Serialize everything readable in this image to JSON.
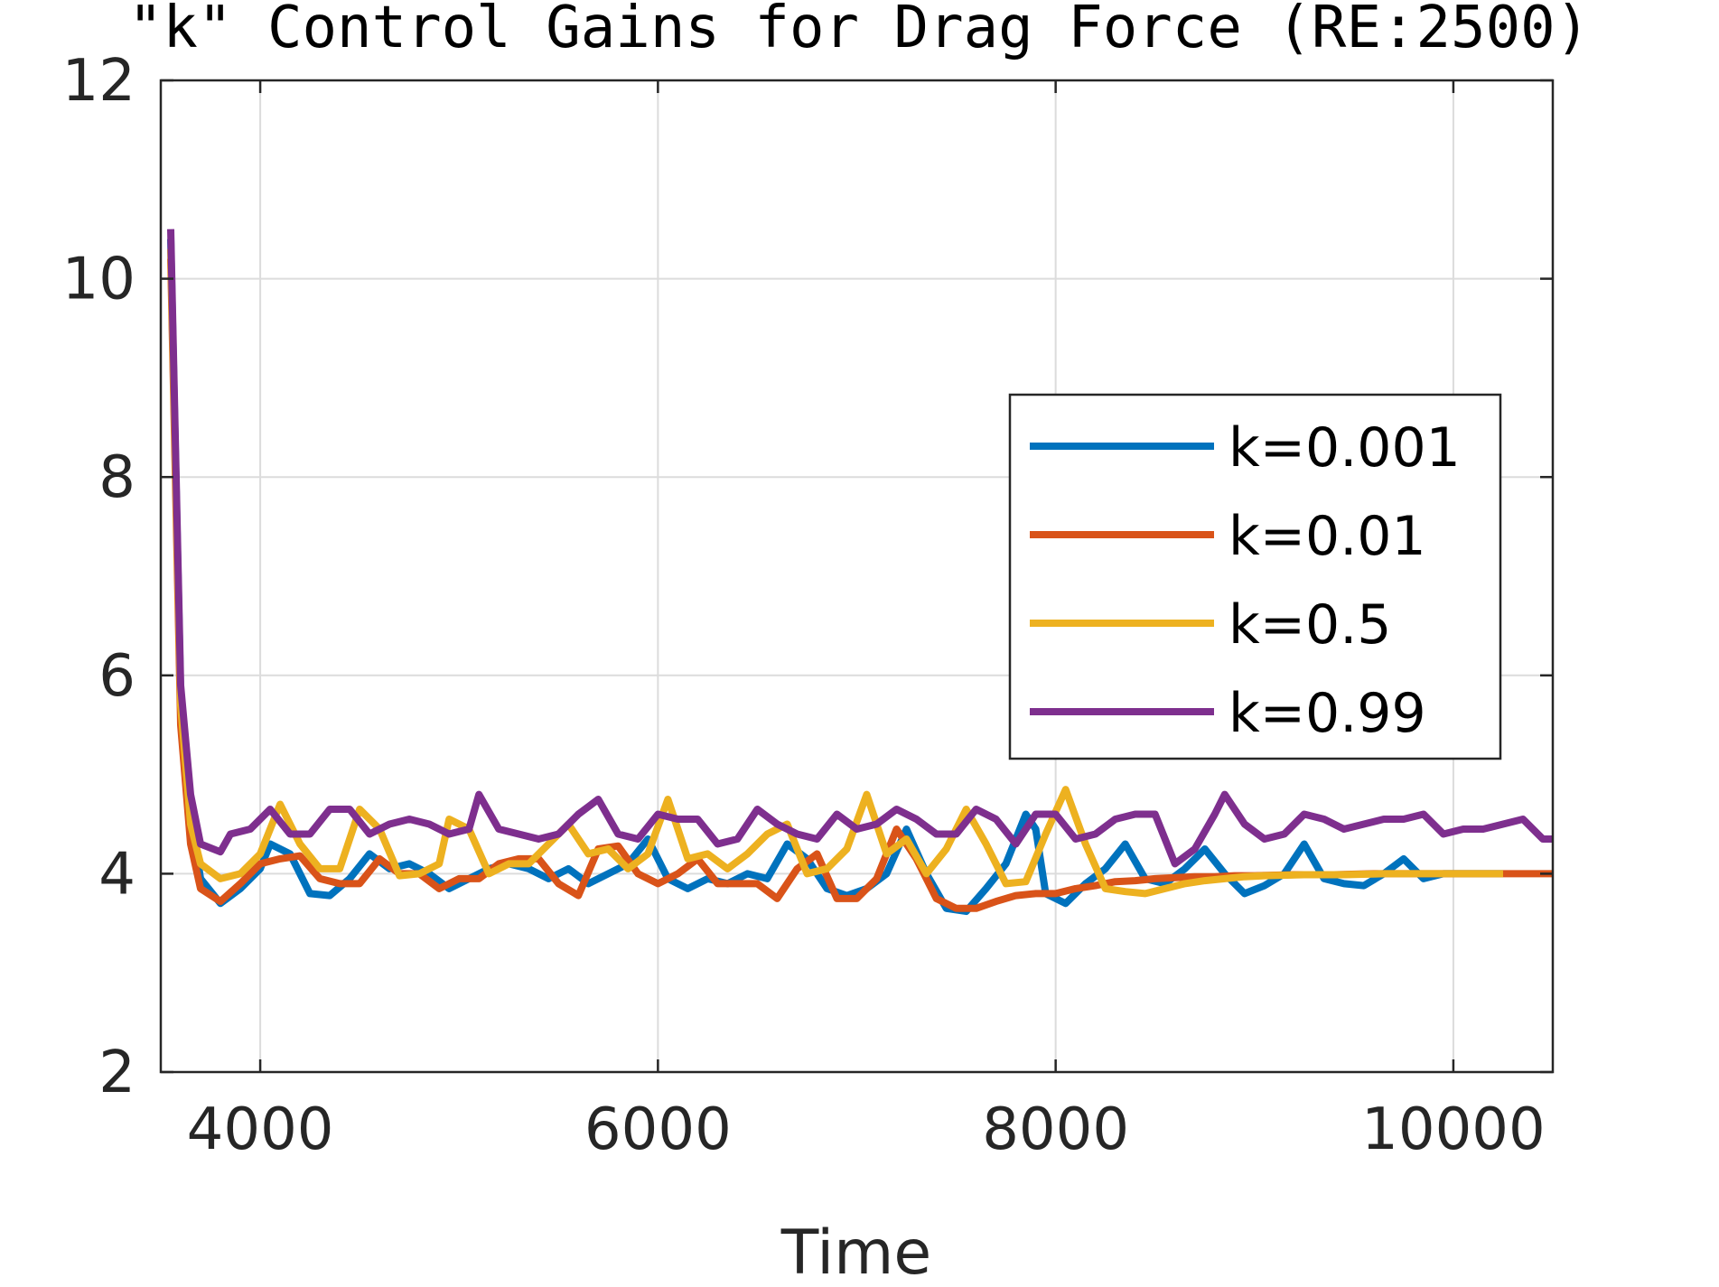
{
  "chart_data": {
    "type": "line",
    "title": "\"k\" Control Gains for Drag Force (RE:2500)",
    "xlabel": "Time",
    "ylabel": "",
    "xlim": [
      3500,
      10500
    ],
    "ylim": [
      2,
      12
    ],
    "xticks": [
      4000,
      6000,
      8000,
      10000
    ],
    "yticks": [
      2,
      4,
      6,
      8,
      10,
      12
    ],
    "grid": true,
    "legend_position": "right",
    "series": [
      {
        "name": "k=0.001",
        "color": "#0072BD",
        "points": [
          [
            3550,
            10.4
          ],
          [
            3600,
            5.8
          ],
          [
            3650,
            4.6
          ],
          [
            3700,
            3.95
          ],
          [
            3800,
            3.7
          ],
          [
            3900,
            3.85
          ],
          [
            4000,
            4.05
          ],
          [
            4050,
            4.3
          ],
          [
            4150,
            4.2
          ],
          [
            4250,
            3.8
          ],
          [
            4350,
            3.78
          ],
          [
            4450,
            3.95
          ],
          [
            4550,
            4.2
          ],
          [
            4650,
            4.05
          ],
          [
            4750,
            4.1
          ],
          [
            4850,
            4.0
          ],
          [
            4950,
            3.85
          ],
          [
            5050,
            3.95
          ],
          [
            5150,
            4.05
          ],
          [
            5250,
            4.1
          ],
          [
            5350,
            4.05
          ],
          [
            5450,
            3.95
          ],
          [
            5550,
            4.05
          ],
          [
            5650,
            3.9
          ],
          [
            5750,
            4.0
          ],
          [
            5850,
            4.1
          ],
          [
            5950,
            4.35
          ],
          [
            6050,
            3.95
          ],
          [
            6150,
            3.85
          ],
          [
            6250,
            3.95
          ],
          [
            6350,
            3.9
          ],
          [
            6450,
            4.0
          ],
          [
            6550,
            3.95
          ],
          [
            6650,
            4.3
          ],
          [
            6750,
            4.15
          ],
          [
            6850,
            3.85
          ],
          [
            6950,
            3.78
          ],
          [
            7050,
            3.85
          ],
          [
            7150,
            4.0
          ],
          [
            7250,
            4.45
          ],
          [
            7350,
            4.0
          ],
          [
            7450,
            3.65
          ],
          [
            7550,
            3.62
          ],
          [
            7650,
            3.85
          ],
          [
            7750,
            4.1
          ],
          [
            7850,
            4.6
          ],
          [
            7900,
            4.45
          ],
          [
            7950,
            3.8
          ],
          [
            8050,
            3.7
          ],
          [
            8150,
            3.9
          ],
          [
            8250,
            4.05
          ],
          [
            8350,
            4.3
          ],
          [
            8450,
            3.95
          ],
          [
            8550,
            3.9
          ],
          [
            8650,
            4.05
          ],
          [
            8750,
            4.25
          ],
          [
            8850,
            4.0
          ],
          [
            8950,
            3.8
          ],
          [
            9050,
            3.88
          ],
          [
            9150,
            4.0
          ],
          [
            9250,
            4.3
          ],
          [
            9350,
            3.95
          ],
          [
            9450,
            3.9
          ],
          [
            9550,
            3.88
          ],
          [
            9650,
            4.0
          ],
          [
            9750,
            4.15
          ],
          [
            9850,
            3.95
          ],
          [
            9950,
            4.0
          ],
          [
            10050,
            4.0
          ],
          [
            10150,
            4.0
          ],
          [
            10250,
            4.0
          ]
        ]
      },
      {
        "name": "k=0.01",
        "color": "#D95319",
        "points": [
          [
            3550,
            10.2
          ],
          [
            3600,
            5.5
          ],
          [
            3650,
            4.3
          ],
          [
            3700,
            3.85
          ],
          [
            3800,
            3.72
          ],
          [
            3900,
            3.9
          ],
          [
            4000,
            4.1
          ],
          [
            4100,
            4.15
          ],
          [
            4200,
            4.18
          ],
          [
            4300,
            3.95
          ],
          [
            4400,
            3.9
          ],
          [
            4500,
            3.9
          ],
          [
            4600,
            4.15
          ],
          [
            4700,
            4.0
          ],
          [
            4800,
            4.0
          ],
          [
            4900,
            3.85
          ],
          [
            5000,
            3.95
          ],
          [
            5100,
            3.95
          ],
          [
            5200,
            4.1
          ],
          [
            5300,
            4.15
          ],
          [
            5400,
            4.15
          ],
          [
            5500,
            3.9
          ],
          [
            5600,
            3.78
          ],
          [
            5700,
            4.25
          ],
          [
            5800,
            4.28
          ],
          [
            5900,
            4.0
          ],
          [
            6000,
            3.9
          ],
          [
            6100,
            4.0
          ],
          [
            6200,
            4.15
          ],
          [
            6300,
            3.9
          ],
          [
            6400,
            3.9
          ],
          [
            6500,
            3.9
          ],
          [
            6600,
            3.75
          ],
          [
            6700,
            4.05
          ],
          [
            6800,
            4.2
          ],
          [
            6900,
            3.75
          ],
          [
            7000,
            3.75
          ],
          [
            7100,
            3.95
          ],
          [
            7200,
            4.45
          ],
          [
            7300,
            4.15
          ],
          [
            7400,
            3.75
          ],
          [
            7500,
            3.65
          ],
          [
            7600,
            3.65
          ],
          [
            7700,
            3.72
          ],
          [
            7800,
            3.78
          ],
          [
            7900,
            3.8
          ],
          [
            8000,
            3.8
          ],
          [
            8100,
            3.85
          ],
          [
            8200,
            3.88
          ],
          [
            8300,
            3.92
          ],
          [
            8400,
            3.93
          ],
          [
            8500,
            3.95
          ],
          [
            8600,
            3.96
          ],
          [
            8700,
            3.97
          ],
          [
            8800,
            3.97
          ],
          [
            8900,
            3.98
          ],
          [
            9000,
            3.98
          ],
          [
            9200,
            3.99
          ],
          [
            9400,
            3.99
          ],
          [
            9600,
            4.0
          ],
          [
            9800,
            4.0
          ],
          [
            10000,
            4.0
          ],
          [
            10200,
            4.0
          ],
          [
            10500,
            4.0
          ]
        ]
      },
      {
        "name": "k=0.5",
        "color": "#EDB120",
        "points": [
          [
            3550,
            10.3
          ],
          [
            3600,
            5.7
          ],
          [
            3650,
            4.5
          ],
          [
            3700,
            4.1
          ],
          [
            3800,
            3.95
          ],
          [
            3900,
            4.0
          ],
          [
            4000,
            4.2
          ],
          [
            4100,
            4.7
          ],
          [
            4200,
            4.3
          ],
          [
            4300,
            4.05
          ],
          [
            4400,
            4.05
          ],
          [
            4500,
            4.65
          ],
          [
            4600,
            4.45
          ],
          [
            4700,
            3.98
          ],
          [
            4800,
            4.0
          ],
          [
            4900,
            4.1
          ],
          [
            4950,
            4.55
          ],
          [
            5050,
            4.45
          ],
          [
            5150,
            4.0
          ],
          [
            5250,
            4.1
          ],
          [
            5350,
            4.1
          ],
          [
            5450,
            4.3
          ],
          [
            5550,
            4.5
          ],
          [
            5650,
            4.2
          ],
          [
            5750,
            4.25
          ],
          [
            5850,
            4.05
          ],
          [
            5950,
            4.2
          ],
          [
            6050,
            4.75
          ],
          [
            6150,
            4.15
          ],
          [
            6250,
            4.2
          ],
          [
            6350,
            4.05
          ],
          [
            6450,
            4.2
          ],
          [
            6550,
            4.4
          ],
          [
            6650,
            4.5
          ],
          [
            6750,
            4.0
          ],
          [
            6850,
            4.05
          ],
          [
            6950,
            4.25
          ],
          [
            7050,
            4.8
          ],
          [
            7150,
            4.2
          ],
          [
            7250,
            4.35
          ],
          [
            7350,
            4.0
          ],
          [
            7450,
            4.25
          ],
          [
            7550,
            4.65
          ],
          [
            7650,
            4.3
          ],
          [
            7750,
            3.9
          ],
          [
            7850,
            3.92
          ],
          [
            7950,
            4.4
          ],
          [
            8050,
            4.85
          ],
          [
            8150,
            4.3
          ],
          [
            8250,
            3.85
          ],
          [
            8350,
            3.82
          ],
          [
            8450,
            3.8
          ],
          [
            8550,
            3.85
          ],
          [
            8650,
            3.9
          ],
          [
            8750,
            3.93
          ],
          [
            8850,
            3.95
          ],
          [
            8950,
            3.97
          ],
          [
            9050,
            3.98
          ],
          [
            9250,
            3.99
          ],
          [
            9450,
            3.99
          ],
          [
            9650,
            4.0
          ],
          [
            9850,
            4.0
          ],
          [
            10050,
            4.0
          ],
          [
            10250,
            4.0
          ]
        ]
      },
      {
        "name": "k=0.99",
        "color": "#7E2F8E",
        "points": [
          [
            3550,
            10.5
          ],
          [
            3600,
            5.9
          ],
          [
            3650,
            4.8
          ],
          [
            3700,
            4.3
          ],
          [
            3800,
            4.22
          ],
          [
            3850,
            4.4
          ],
          [
            3950,
            4.45
          ],
          [
            4050,
            4.65
          ],
          [
            4150,
            4.4
          ],
          [
            4250,
            4.4
          ],
          [
            4350,
            4.65
          ],
          [
            4450,
            4.65
          ],
          [
            4550,
            4.4
          ],
          [
            4650,
            4.5
          ],
          [
            4750,
            4.55
          ],
          [
            4850,
            4.5
          ],
          [
            4950,
            4.4
          ],
          [
            5050,
            4.45
          ],
          [
            5100,
            4.8
          ],
          [
            5200,
            4.45
          ],
          [
            5300,
            4.4
          ],
          [
            5400,
            4.35
          ],
          [
            5500,
            4.4
          ],
          [
            5600,
            4.6
          ],
          [
            5700,
            4.75
          ],
          [
            5800,
            4.4
          ],
          [
            5900,
            4.35
          ],
          [
            6000,
            4.6
          ],
          [
            6100,
            4.55
          ],
          [
            6200,
            4.55
          ],
          [
            6300,
            4.3
          ],
          [
            6400,
            4.35
          ],
          [
            6500,
            4.65
          ],
          [
            6600,
            4.5
          ],
          [
            6700,
            4.4
          ],
          [
            6800,
            4.35
          ],
          [
            6900,
            4.6
          ],
          [
            7000,
            4.45
          ],
          [
            7100,
            4.5
          ],
          [
            7200,
            4.65
          ],
          [
            7300,
            4.55
          ],
          [
            7400,
            4.4
          ],
          [
            7500,
            4.4
          ],
          [
            7600,
            4.65
          ],
          [
            7700,
            4.55
          ],
          [
            7800,
            4.3
          ],
          [
            7900,
            4.6
          ],
          [
            8000,
            4.6
          ],
          [
            8100,
            4.35
          ],
          [
            8200,
            4.4
          ],
          [
            8300,
            4.55
          ],
          [
            8400,
            4.6
          ],
          [
            8500,
            4.6
          ],
          [
            8600,
            4.1
          ],
          [
            8700,
            4.25
          ],
          [
            8800,
            4.6
          ],
          [
            8850,
            4.8
          ],
          [
            8950,
            4.5
          ],
          [
            9050,
            4.35
          ],
          [
            9150,
            4.4
          ],
          [
            9250,
            4.6
          ],
          [
            9350,
            4.55
          ],
          [
            9450,
            4.45
          ],
          [
            9550,
            4.5
          ],
          [
            9650,
            4.55
          ],
          [
            9750,
            4.55
          ],
          [
            9850,
            4.6
          ],
          [
            9950,
            4.4
          ],
          [
            10050,
            4.45
          ],
          [
            10150,
            4.45
          ],
          [
            10250,
            4.5
          ],
          [
            10350,
            4.55
          ],
          [
            10450,
            4.35
          ],
          [
            10500,
            4.35
          ]
        ]
      }
    ]
  }
}
